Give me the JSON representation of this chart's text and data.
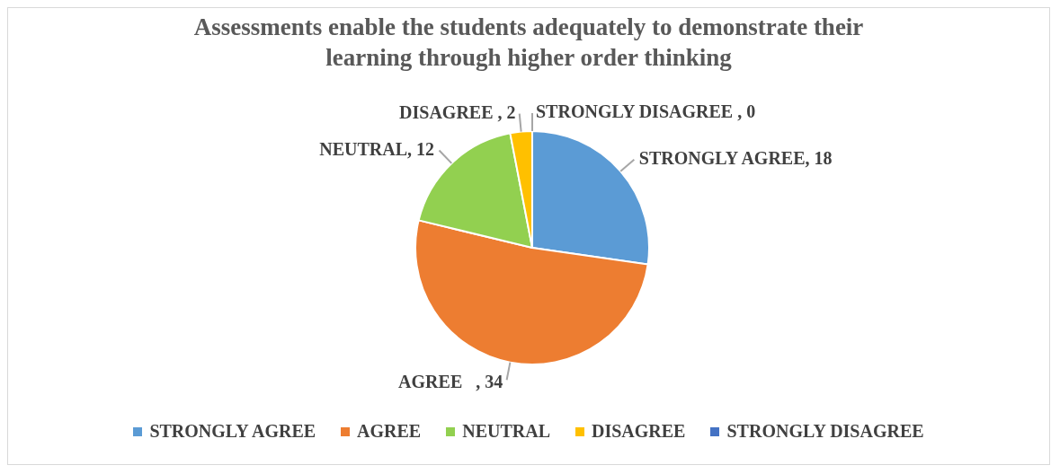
{
  "chart_data": {
    "type": "pie",
    "title": "Assessments enable the students adequately to demonstrate their learning through higher order thinking",
    "categories": [
      "STRONGLY AGREE",
      "AGREE",
      "NEUTRAL",
      "DISAGREE",
      "STRONGLY DISAGREE"
    ],
    "values": [
      18,
      34,
      12,
      2,
      0
    ],
    "colors": [
      "#5b9bd5",
      "#ed7d31",
      "#92d050",
      "#ffc000",
      "#4472c4"
    ],
    "value_labels": [
      "STRONGLY AGREE, 18",
      "AGREE   , 34",
      "NEUTRAL, 12",
      "DISAGREE , 2",
      "STRONGLY DISAGREE , 0"
    ],
    "legend": "bottom"
  }
}
